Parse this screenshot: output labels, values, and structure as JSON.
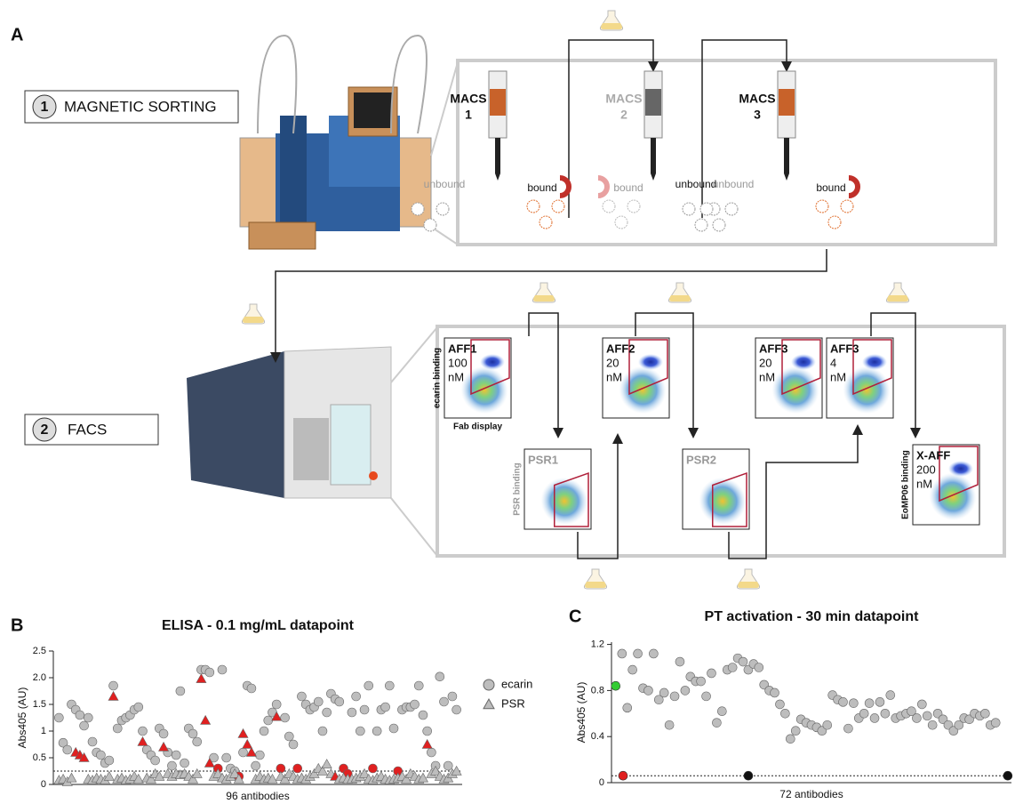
{
  "panel_a": {
    "label": "A",
    "step1": {
      "number": "1",
      "name": "MAGNETIC SORTING"
    },
    "macs": [
      {
        "title": "MACS",
        "number": "1",
        "unbound": "unbound",
        "bound": "bound"
      },
      {
        "title": "MACS",
        "number": "2",
        "unbound": "unbound",
        "bound": "bound"
      },
      {
        "title": "MACS",
        "number": "3",
        "unbound": "unbound",
        "bound": "bound"
      }
    ],
    "step2": {
      "number": "2",
      "name": "FACS"
    },
    "facs_plots": [
      {
        "name": "AFF1",
        "conc": "100",
        "unit": "nM",
        "y_axis": "ecarin binding",
        "x_axis": "Fab display"
      },
      {
        "name": "PSR1",
        "y_axis": "PSR binding"
      },
      {
        "name": "AFF2",
        "conc": "20",
        "unit": "nM"
      },
      {
        "name": "PSR2"
      },
      {
        "name": "AFF3",
        "conc": "20",
        "unit": "nM"
      },
      {
        "name": "AFF3",
        "conc": "4",
        "unit": "nM"
      },
      {
        "name": "X-AFF",
        "conc": "200",
        "unit": "nM",
        "y_axis": "EoMP06 binding"
      }
    ]
  },
  "chart_data": [
    {
      "type": "scatter",
      "panel": "B",
      "title": "ELISA - 0.1 mg/mL datapoint",
      "y_label": "Abs405 (AU)",
      "x_label": "96 antibodies",
      "ylim": [
        0,
        2.5
      ],
      "yticks": [
        0,
        0.5,
        1,
        1.5,
        {
          "value": 2,
          "label": "2.0"
        },
        2.5
      ],
      "threshold": 0.25,
      "highlight_color": "#e02020",
      "series": [
        {
          "name": "ecarin",
          "marker": "circle",
          "color": "#bdbdbd",
          "values": [
            1.25,
            0.78,
            0.65,
            1.5,
            1.4,
            1.3,
            1.1,
            1.25,
            0.8,
            0.6,
            0.55,
            0.4,
            0.45,
            1.85,
            1.05,
            1.2,
            1.25,
            1.3,
            1.4,
            1.45,
            1.0,
            0.65,
            0.55,
            0.45,
            1.05,
            0.95,
            0.6,
            0.35,
            0.55,
            1.75,
            0.4,
            1.05,
            0.95,
            0.8,
            2.15,
            2.15,
            2.1,
            0.5,
            0.3,
            2.15,
            0.5,
            0.3,
            0.25,
            0.15,
            0.6,
            1.85,
            1.8,
            0.35,
            0.55,
            1.0,
            1.2,
            1.35,
            1.5,
            0.3,
            1.25,
            0.9,
            0.75,
            0.3,
            1.65,
            1.5,
            1.4,
            1.45,
            1.55,
            1.0,
            1.35,
            1.7,
            1.6,
            1.55,
            0.3,
            0.2,
            1.35,
            1.65,
            1.0,
            1.4,
            1.85,
            0.3,
            1.0,
            1.4,
            1.45,
            1.85,
            1.05,
            0.25,
            1.4,
            1.45,
            1.45,
            1.5,
            1.85,
            1.3,
            1.0,
            0.6,
            0.35,
            2.02,
            1.55,
            0.35,
            1.65,
            1.4
          ],
          "highlight": [
            38,
            43,
            53,
            57,
            68,
            69,
            75,
            81
          ]
        },
        {
          "name": "PSR",
          "marker": "triangle",
          "color": "#bdbdbd",
          "values": [
            0.08,
            0.1,
            0.05,
            0.12,
            0.6,
            0.55,
            0.5,
            0.1,
            0.08,
            0.12,
            0.1,
            0.08,
            0.15,
            1.65,
            0.1,
            0.12,
            0.08,
            0.1,
            0.15,
            0.1,
            0.8,
            0.12,
            0.1,
            0.2,
            0.15,
            0.7,
            0.2,
            0.15,
            0.2,
            0.18,
            0.2,
            0.15,
            0.1,
            0.2,
            1.98,
            1.2,
            0.4,
            0.15,
            0.2,
            0.12,
            0.1,
            0.15,
            0.2,
            0.1,
            0.95,
            0.75,
            0.6,
            0.1,
            0.15,
            0.1,
            0.12,
            0.1,
            1.27,
            0.15,
            0.1,
            0.2,
            0.15,
            0.1,
            0.12,
            0.1,
            0.15,
            0.2,
            0.3,
            0.25,
            0.38,
            0.2,
            0.15,
            0.1,
            0.12,
            0.1,
            0.1,
            0.12,
            0.15,
            0.2,
            0.1,
            0.08,
            0.12,
            0.15,
            0.1,
            0.08,
            0.1,
            0.12,
            0.15,
            0.1,
            0.2,
            0.15,
            0.1,
            0.12,
            0.75,
            0.2,
            0.25,
            0.15,
            0.1,
            0.12,
            0.2,
            0.25
          ],
          "highlight": [
            4,
            5,
            6,
            13,
            20,
            25,
            34,
            35,
            36,
            44,
            45,
            46,
            52,
            66,
            88
          ]
        }
      ]
    },
    {
      "type": "scatter",
      "panel": "C",
      "title": "PT activation - 30 min datapoint",
      "y_label": "Abs405 (AU)",
      "x_label": "72 antibodies",
      "ylim": [
        0,
        1.22
      ],
      "yticks": [
        0,
        0.4,
        0.8,
        1.2
      ],
      "threshold": 0.06,
      "series": [
        {
          "color": "#bdbdbd",
          "marker": "circle",
          "values": [
            1.12,
            0.65,
            0.98,
            1.12,
            0.82,
            0.8,
            1.12,
            0.72,
            0.78,
            0.5,
            0.75,
            1.05,
            0.8,
            0.92,
            0.88,
            0.88,
            0.75,
            0.95,
            0.52,
            0.62,
            0.98,
            1.0,
            1.08,
            1.05,
            0.98,
            1.03,
            1.0,
            0.85,
            0.8,
            0.78,
            0.68,
            0.6,
            0.38,
            0.45,
            0.55,
            0.52,
            0.5,
            0.48,
            0.45,
            0.5,
            0.76,
            0.72,
            0.7,
            0.47,
            0.69,
            0.56,
            0.6,
            0.69,
            0.56,
            0.7,
            0.6,
            0.76,
            0.56,
            0.58,
            0.6,
            0.62,
            0.56,
            0.68,
            0.58,
            0.5,
            0.6,
            0.55,
            0.5,
            0.45,
            0.5,
            0.56,
            0.55,
            0.6,
            0.58,
            0.6,
            0.5,
            0.52
          ]
        }
      ],
      "controls": {
        "x": [
          -1.2,
          0.2,
          24,
          73.3
        ],
        "values": [
          0.84,
          0.06,
          0.06,
          0.06
        ],
        "colors": [
          "#33cc33",
          "#e02020",
          "#111111",
          "#111111"
        ]
      }
    }
  ]
}
